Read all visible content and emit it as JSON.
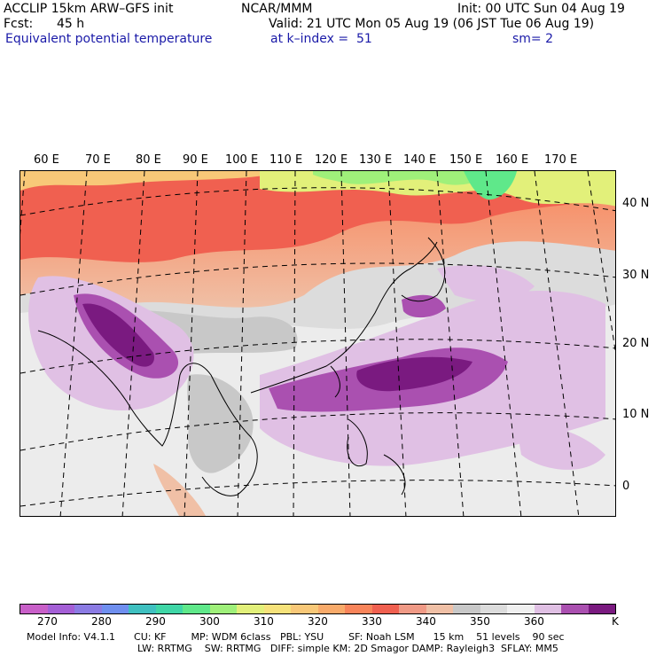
{
  "header": {
    "model": "ACCLIP 15km ARW–GFS init",
    "org": "NCAR/MMM",
    "init": "Init: 00 UTC Sun 04 Aug 19",
    "fcst_label": "Fcst:",
    "fcst_value": "45 h",
    "valid": "Valid: 21 UTC Mon 05 Aug 19 (06 JST Tue 06 Aug 19)",
    "field": "Equivalent potential temperature",
    "level": "at k–index =  51",
    "smooth": "sm= 2"
  },
  "map": {
    "lon_labels": [
      "60 E",
      "70 E",
      "80 E",
      "90 E",
      "100 E",
      "110 E",
      "120 E",
      "130 E",
      "140 E",
      "150 E",
      "160 E",
      "170 E"
    ],
    "lat_labels": [
      "40 N",
      "30 N",
      "20 N",
      "10 N",
      "0"
    ]
  },
  "colorbar": {
    "colors": [
      "#c85fc8",
      "#a45fd6",
      "#8b7be3",
      "#6f8fef",
      "#3fc0c0",
      "#3fd6a6",
      "#5fe88a",
      "#9ff07a",
      "#e2f07a",
      "#f6e27a",
      "#f8c878",
      "#f8aa6a",
      "#f8845a",
      "#f06050",
      "#f09a86",
      "#f0c0a6",
      "#c8c8c8",
      "#dcdcdc",
      "#f0f0f0",
      "#e0c0e4",
      "#aa50b0",
      "#7a1a80"
    ],
    "labels": [
      "270",
      "280",
      "290",
      "300",
      "310",
      "320",
      "330",
      "340",
      "350",
      "360"
    ],
    "unit": "K"
  },
  "footer": {
    "line1": "Model Info: V4.1.1      CU: KF        MP: WDM 6class   PBL: YSU        SF: Noah LSM      15 km    51 levels    90 sec",
    "line2": "LW: RRTMG    SW: RRTMG   DIFF: simple KM: 2D Smagor DAMP: Rayleigh3  SFLAY: MM5"
  }
}
